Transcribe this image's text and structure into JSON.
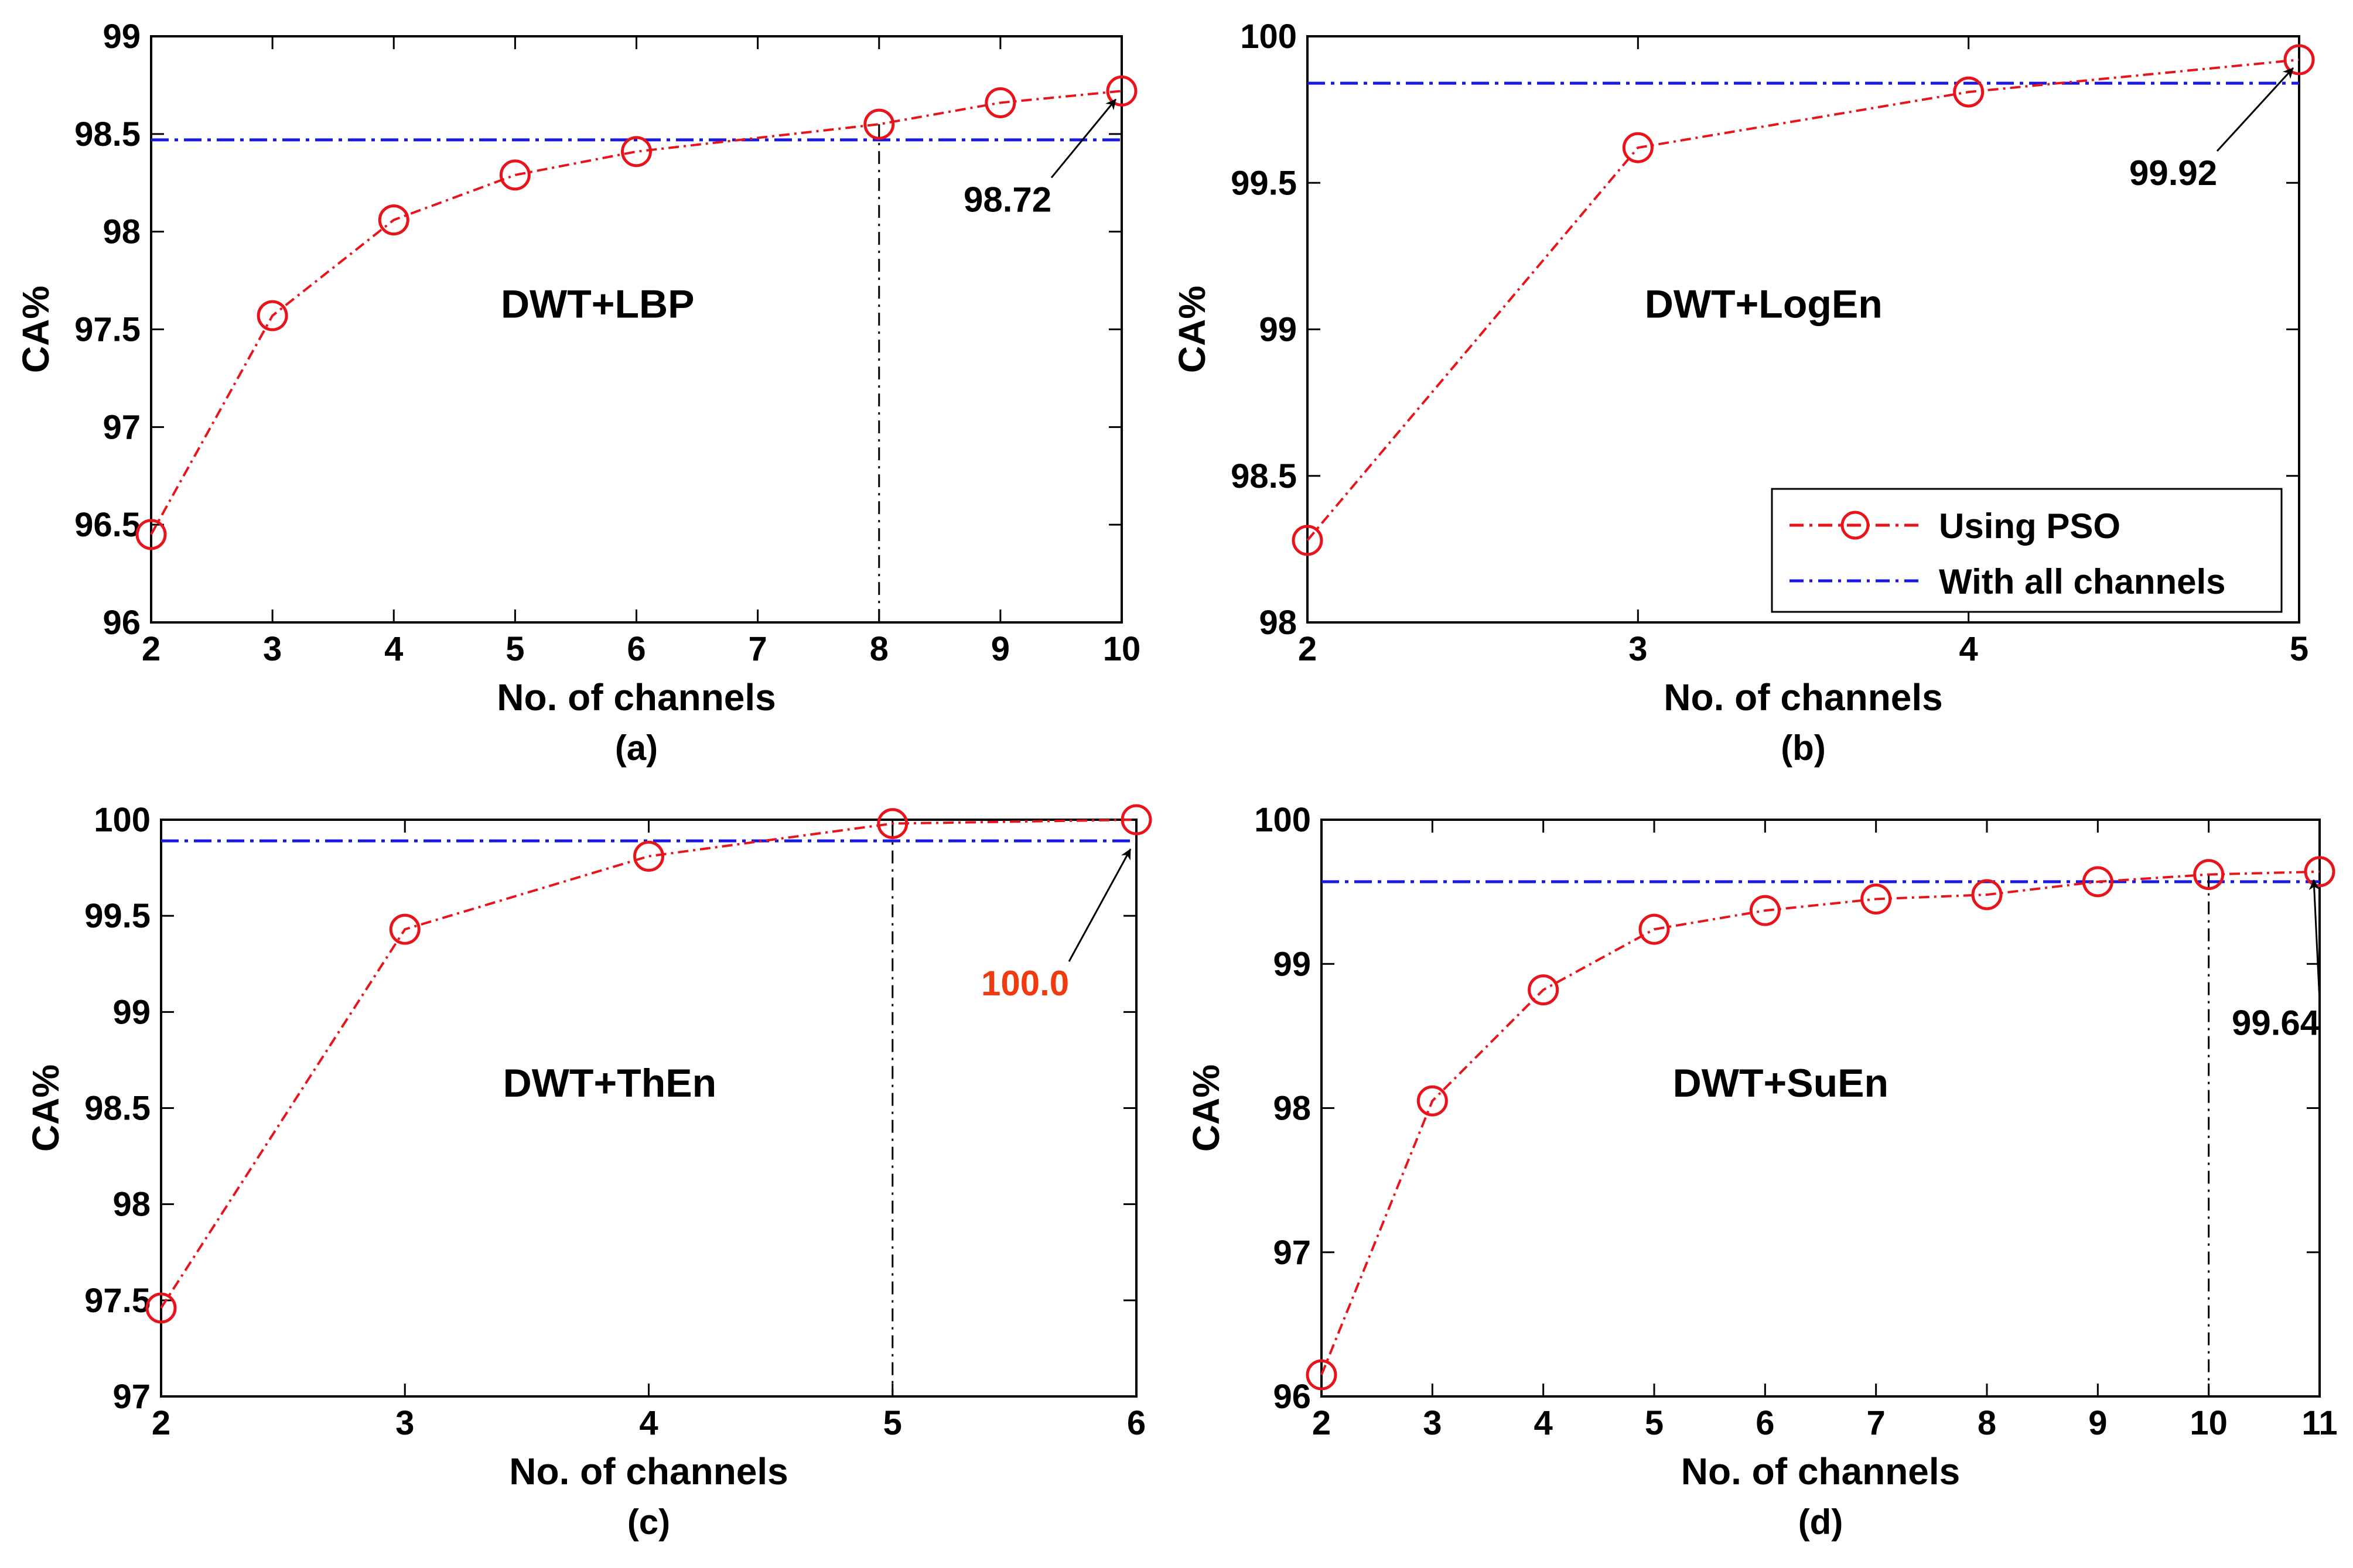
{
  "colors": {
    "pso": "#e8141c",
    "all_channels": "#1818e0",
    "arrow": "#000000",
    "highlight_annotation": "#f03a10"
  },
  "legend": {
    "items": [
      {
        "label": "Using PSO",
        "series": "pso"
      },
      {
        "label": "With all channels",
        "series": "all_channels"
      }
    ]
  },
  "chart_data": [
    {
      "id": "a",
      "type": "line",
      "title": "DWT+LBP",
      "caption": "(a)",
      "xlabel": "No. of channels",
      "ylabel": "CA%",
      "x": [
        2,
        3,
        4,
        5,
        6,
        8,
        9,
        10
      ],
      "xlim": [
        2,
        10
      ],
      "xticks": [
        2,
        3,
        4,
        5,
        6,
        7,
        8,
        9,
        10
      ],
      "ylim": [
        96,
        99
      ],
      "yticks": [
        96,
        96.5,
        97,
        97.5,
        98,
        98.5,
        99
      ],
      "ytick_labels": [
        "96",
        "96.5",
        "97",
        "97.5",
        "98",
        "98.5",
        "99"
      ],
      "series": [
        {
          "name": "Using PSO",
          "values": [
            96.45,
            97.57,
            98.06,
            98.29,
            98.41,
            98.55,
            98.66,
            98.72
          ]
        },
        {
          "name": "With all channels",
          "constant": 98.47
        }
      ],
      "marker_x": 8,
      "annotation": {
        "text": "98.72",
        "x": 10,
        "y": 98.72,
        "highlight": false
      }
    },
    {
      "id": "b",
      "type": "line",
      "title": "DWT+LogEn",
      "caption": "(b)",
      "xlabel": "No. of channels",
      "ylabel": "CA%",
      "x": [
        2,
        3,
        4,
        5
      ],
      "xlim": [
        2,
        5
      ],
      "xticks": [
        2,
        3,
        4,
        5
      ],
      "ylim": [
        98,
        100
      ],
      "yticks": [
        98,
        98.5,
        99,
        99.5,
        100
      ],
      "ytick_labels": [
        "98",
        "98.5",
        "99",
        "99.5",
        "100"
      ],
      "series": [
        {
          "name": "Using PSO",
          "values": [
            98.28,
            99.62,
            99.81,
            99.92
          ]
        },
        {
          "name": "With all channels",
          "constant": 99.84
        }
      ],
      "marker_x": null,
      "annotation": {
        "text": "99.92",
        "x": 5,
        "y": 99.92,
        "highlight": false
      },
      "show_legend": true
    },
    {
      "id": "c",
      "type": "line",
      "title": "DWT+ThEn",
      "caption": "(c)",
      "xlabel": "No. of channels",
      "ylabel": "CA%",
      "x": [
        2,
        3,
        4,
        5,
        6
      ],
      "xlim": [
        2,
        6
      ],
      "xticks": [
        2,
        3,
        4,
        5,
        6
      ],
      "ylim": [
        97,
        100
      ],
      "yticks": [
        97,
        97.5,
        98,
        98.5,
        99,
        99.5,
        100
      ],
      "ytick_labels": [
        "97",
        "97.5",
        "98",
        "98.5",
        "99",
        "99.5",
        "100"
      ],
      "series": [
        {
          "name": "Using PSO",
          "values": [
            97.46,
            99.43,
            99.81,
            99.98,
            100.0
          ]
        },
        {
          "name": "With all channels",
          "constant": 99.89
        }
      ],
      "marker_x": 5,
      "annotation": {
        "text": "100.0",
        "x": 6,
        "y": 99.89,
        "highlight": true
      }
    },
    {
      "id": "d",
      "type": "line",
      "title": "DWT+SuEn",
      "caption": "(d)",
      "xlabel": "No. of channels",
      "ylabel": "CA%",
      "x": [
        2,
        3,
        4,
        5,
        6,
        7,
        8,
        9,
        10,
        11
      ],
      "xlim": [
        2,
        11
      ],
      "xticks": [
        2,
        3,
        4,
        5,
        6,
        7,
        8,
        9,
        10,
        11
      ],
      "ylim": [
        96,
        100
      ],
      "yticks": [
        96,
        97,
        98,
        99,
        100
      ],
      "ytick_labels": [
        "96",
        "97",
        "98",
        "99",
        "100"
      ],
      "series": [
        {
          "name": "Using PSO",
          "values": [
            96.15,
            98.05,
            98.82,
            99.24,
            99.37,
            99.45,
            99.48,
            99.57,
            99.62,
            99.64
          ]
        },
        {
          "name": "With all channels",
          "constant": 99.57
        }
      ],
      "marker_x": 10,
      "annotation": {
        "text": "99.64",
        "x": 11,
        "y": 99.64,
        "highlight": false
      }
    }
  ]
}
